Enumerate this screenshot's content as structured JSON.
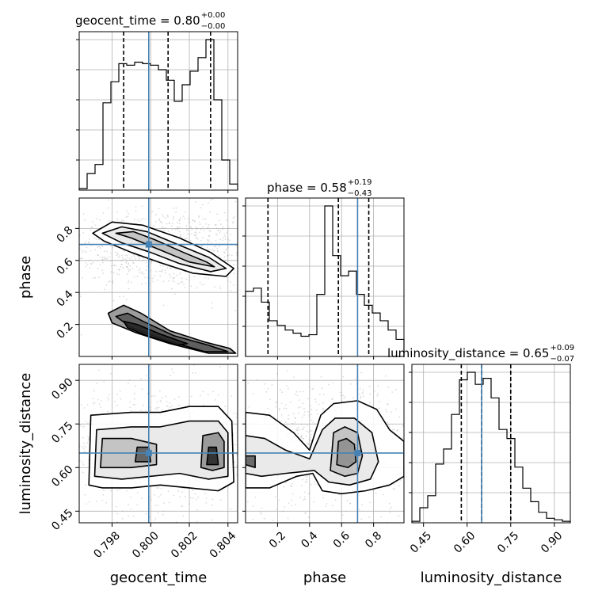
{
  "chart_data": {
    "type": "corner",
    "parameters": [
      "geocent_time",
      "phase",
      "luminosity_distance"
    ],
    "axis_labels": {
      "geocent_time": "geocent_time",
      "phase": "phase",
      "luminosity_distance": "luminosity_distance"
    },
    "ranges": {
      "geocent_time": [
        0.7963,
        0.8045
      ],
      "phase": [
        0.0,
        0.99
      ],
      "luminosity_distance": [
        0.41,
        0.955
      ]
    },
    "ticks": {
      "geocent_time": {
        "values": [
          0.798,
          0.8,
          0.802,
          0.804
        ],
        "labels": [
          "0.798",
          "0.800",
          "0.802",
          "0.804"
        ]
      },
      "phase": {
        "values": [
          0.2,
          0.4,
          0.6,
          0.8
        ],
        "labels": [
          "0.2",
          "0.4",
          "0.6",
          "0.8"
        ]
      },
      "luminosity_distance": {
        "values": [
          0.45,
          0.6,
          0.75,
          0.9
        ],
        "labels": [
          "0.45",
          "0.60",
          "0.75",
          "0.90"
        ]
      }
    },
    "truths": {
      "geocent_time": 0.7999,
      "phase": 0.7,
      "luminosity_distance": 0.65
    },
    "truth_color": "#4682b4",
    "titles": {
      "geocent_time": {
        "name": "geocent_time",
        "median": "0.80",
        "plus": "+0.00",
        "minus": "−0.00"
      },
      "phase": {
        "name": "phase",
        "median": "0.58",
        "plus": "+0.19",
        "minus": "−0.43"
      },
      "luminosity_distance": {
        "name": "luminosity_distance",
        "median": "0.65",
        "plus": "+0.09",
        "minus": "−0.07"
      }
    },
    "quantiles": {
      "geocent_time": [
        0.7986,
        0.8009,
        0.8031
      ],
      "phase": [
        0.14,
        0.58,
        0.77
      ],
      "luminosity_distance": [
        0.58,
        0.65,
        0.75
      ]
    },
    "histograms": {
      "geocent_time": {
        "bins": [
          0.7963,
          0.79671,
          0.79712,
          0.79753,
          0.79794,
          0.79835,
          0.79876,
          0.79917,
          0.79958,
          0.79999,
          0.8004,
          0.80081,
          0.80122,
          0.80163,
          0.80204,
          0.80245,
          0.80286,
          0.80327,
          0.80368,
          0.80409,
          0.8045
        ],
        "counts": [
          0.01,
          0.11,
          0.17,
          0.58,
          0.72,
          0.84,
          0.83,
          0.85,
          0.84,
          0.83,
          0.8,
          0.73,
          0.59,
          0.7,
          0.79,
          0.88,
          1.0,
          0.6,
          0.2,
          0.04
        ]
      },
      "phase": {
        "bins": [
          0.0,
          0.0495,
          0.099,
          0.1485,
          0.198,
          0.2475,
          0.297,
          0.3465,
          0.396,
          0.4455,
          0.495,
          0.5445,
          0.594,
          0.6435,
          0.693,
          0.7425,
          0.792,
          0.8415,
          0.891,
          0.9405,
          0.99
        ],
        "counts": [
          0.42,
          0.44,
          0.35,
          0.23,
          0.2,
          0.17,
          0.15,
          0.13,
          0.14,
          0.4,
          0.97,
          0.65,
          0.52,
          0.55,
          0.4,
          0.33,
          0.28,
          0.23,
          0.17,
          0.11
        ]
      },
      "luminosity_distance": {
        "bins": [
          0.41,
          0.43725,
          0.4645,
          0.49175,
          0.519,
          0.54625,
          0.5735,
          0.60075,
          0.628,
          0.65525,
          0.6825,
          0.70975,
          0.737,
          0.76425,
          0.7915,
          0.81875,
          0.846,
          0.87325,
          0.9005,
          0.92775,
          0.955
        ],
        "counts": [
          0.01,
          0.1,
          0.18,
          0.39,
          0.49,
          0.72,
          0.95,
          1.0,
          0.92,
          0.96,
          0.83,
          0.62,
          0.56,
          0.37,
          0.23,
          0.14,
          0.07,
          0.03,
          0.02,
          0.01
        ]
      }
    },
    "histogram_y_ticks": 5,
    "pairs": [
      {
        "x": "geocent_time",
        "y": "phase",
        "contours": [
          [
            [
              0.797,
              0.77
            ],
            [
              0.798,
              0.84
            ],
            [
              0.7996,
              0.82
            ],
            [
              0.8015,
              0.74
            ],
            [
              0.8031,
              0.65
            ],
            [
              0.8043,
              0.55
            ],
            [
              0.8039,
              0.5
            ],
            [
              0.8022,
              0.52
            ],
            [
              0.8004,
              0.59
            ],
            [
              0.799,
              0.65
            ],
            [
              0.7976,
              0.72
            ]
          ],
          [
            [
              0.7975,
              0.77
            ],
            [
              0.7985,
              0.81
            ],
            [
              0.7998,
              0.78
            ],
            [
              0.8014,
              0.7
            ],
            [
              0.803,
              0.62
            ],
            [
              0.8039,
              0.55
            ],
            [
              0.8031,
              0.53
            ],
            [
              0.8015,
              0.58
            ],
            [
              0.8,
              0.65
            ],
            [
              0.7985,
              0.71
            ]
          ],
          [
            [
              0.7982,
              0.77
            ],
            [
              0.7991,
              0.78
            ],
            [
              0.8002,
              0.73
            ],
            [
              0.8017,
              0.65
            ],
            [
              0.8029,
              0.59
            ],
            [
              0.8033,
              0.56
            ],
            [
              0.802,
              0.59
            ],
            [
              0.8004,
              0.67
            ],
            [
              0.799,
              0.74
            ]
          ],
          [
            [
              0.7978,
              0.27
            ],
            [
              0.7986,
              0.32
            ],
            [
              0.7995,
              0.27
            ],
            [
              0.801,
              0.16
            ],
            [
              0.8028,
              0.09
            ],
            [
              0.8041,
              0.05
            ],
            [
              0.8044,
              0.02
            ],
            [
              0.803,
              0.02
            ],
            [
              0.801,
              0.08
            ],
            [
              0.7992,
              0.15
            ],
            [
              0.798,
              0.21
            ]
          ],
          [
            [
              0.7982,
              0.25
            ],
            [
              0.7988,
              0.27
            ],
            [
              0.7996,
              0.22
            ],
            [
              0.8012,
              0.13
            ],
            [
              0.803,
              0.07
            ],
            [
              0.804,
              0.03
            ],
            [
              0.8028,
              0.03
            ],
            [
              0.8008,
              0.1
            ],
            [
              0.799,
              0.18
            ]
          ],
          [
            [
              0.7986,
              0.22
            ],
            [
              0.7993,
              0.2
            ],
            [
              0.8005,
              0.14
            ],
            [
              0.8019,
              0.08
            ],
            [
              0.8014,
              0.07
            ],
            [
              0.7998,
              0.13
            ],
            [
              0.7988,
              0.18
            ]
          ]
        ]
      },
      {
        "x": "geocent_time",
        "y": "luminosity_distance",
        "contours": [
          [
            [
              0.7968,
              0.54
            ],
            [
              0.7969,
              0.78
            ],
            [
              0.799,
              0.79
            ],
            [
              0.8005,
              0.79
            ],
            [
              0.802,
              0.81
            ],
            [
              0.8035,
              0.81
            ],
            [
              0.8042,
              0.76
            ],
            [
              0.8043,
              0.55
            ],
            [
              0.8035,
              0.52
            ],
            [
              0.802,
              0.53
            ],
            [
              0.8005,
              0.54
            ],
            [
              0.799,
              0.53
            ],
            [
              0.7975,
              0.53
            ]
          ],
          [
            [
              0.7971,
              0.57
            ],
            [
              0.7972,
              0.73
            ],
            [
              0.799,
              0.74
            ],
            [
              0.8005,
              0.74
            ],
            [
              0.802,
              0.76
            ],
            [
              0.8035,
              0.76
            ],
            [
              0.804,
              0.72
            ],
            [
              0.804,
              0.57
            ],
            [
              0.803,
              0.56
            ],
            [
              0.8015,
              0.58
            ],
            [
              0.8,
              0.57
            ],
            [
              0.7985,
              0.56
            ]
          ],
          [
            [
              0.7974,
              0.6
            ],
            [
              0.7975,
              0.7
            ],
            [
              0.799,
              0.7
            ],
            [
              0.8003,
              0.68
            ],
            [
              0.8003,
              0.61
            ],
            [
              0.799,
              0.6
            ]
          ],
          [
            [
              0.8026,
              0.6
            ],
            [
              0.8027,
              0.71
            ],
            [
              0.8035,
              0.72
            ],
            [
              0.8038,
              0.69
            ],
            [
              0.8038,
              0.6
            ],
            [
              0.8032,
              0.59
            ]
          ],
          [
            [
              0.7992,
              0.62
            ],
            [
              0.7993,
              0.67
            ],
            [
              0.7999,
              0.67
            ],
            [
              0.8,
              0.62
            ]
          ],
          [
            [
              0.8029,
              0.61
            ],
            [
              0.803,
              0.67
            ],
            [
              0.8034,
              0.67
            ],
            [
              0.8035,
              0.61
            ]
          ]
        ]
      },
      {
        "x": "phase",
        "y": "luminosity_distance",
        "contours": [
          [
            [
              0.0,
              0.79
            ],
            [
              0.15,
              0.78
            ],
            [
              0.3,
              0.72
            ],
            [
              0.4,
              0.66
            ],
            [
              0.47,
              0.78
            ],
            [
              0.55,
              0.82
            ],
            [
              0.7,
              0.83
            ],
            [
              0.82,
              0.8
            ],
            [
              0.9,
              0.73
            ],
            [
              0.99,
              0.69
            ],
            [
              0.99,
              0.57
            ],
            [
              0.9,
              0.54
            ],
            [
              0.75,
              0.52
            ],
            [
              0.6,
              0.51
            ],
            [
              0.48,
              0.52
            ],
            [
              0.42,
              0.58
            ],
            [
              0.32,
              0.57
            ],
            [
              0.15,
              0.53
            ],
            [
              0.0,
              0.53
            ]
          ],
          [
            [
              0.0,
              0.71
            ],
            [
              0.12,
              0.7
            ],
            [
              0.25,
              0.66
            ],
            [
              0.4,
              0.63
            ],
            [
              0.48,
              0.73
            ],
            [
              0.56,
              0.77
            ],
            [
              0.68,
              0.77
            ],
            [
              0.79,
              0.72
            ],
            [
              0.83,
              0.62
            ],
            [
              0.78,
              0.56
            ],
            [
              0.65,
              0.54
            ],
            [
              0.52,
              0.55
            ],
            [
              0.43,
              0.59
            ],
            [
              0.25,
              0.58
            ],
            [
              0.1,
              0.57
            ],
            [
              0.0,
              0.58
            ]
          ],
          [
            [
              0.53,
              0.59
            ],
            [
              0.55,
              0.72
            ],
            [
              0.62,
              0.74
            ],
            [
              0.7,
              0.72
            ],
            [
              0.73,
              0.64
            ],
            [
              0.7,
              0.58
            ],
            [
              0.62,
              0.57
            ]
          ],
          [
            [
              0.57,
              0.61
            ],
            [
              0.58,
              0.69
            ],
            [
              0.63,
              0.7
            ],
            [
              0.68,
              0.68
            ],
            [
              0.69,
              0.62
            ],
            [
              0.64,
              0.6
            ]
          ],
          [
            [
              0.0,
              0.61
            ],
            [
              0.06,
              0.6
            ],
            [
              0.06,
              0.64
            ],
            [
              0.0,
              0.64
            ]
          ]
        ]
      }
    ]
  }
}
